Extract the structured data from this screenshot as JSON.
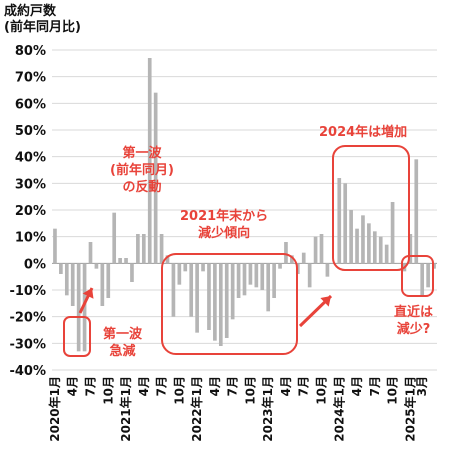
{
  "ytitle_line1": "成約戸数",
  "ytitle_line2": "(前年同月比)",
  "chart_data": {
    "type": "bar",
    "ylim": [
      -40,
      80
    ],
    "yticks": [
      -40,
      -30,
      -20,
      -10,
      0,
      10,
      20,
      30,
      40,
      50,
      60,
      70,
      80
    ],
    "ytick_suffix": "%",
    "grid": true,
    "bar_color": "#b5b5b5",
    "x_labels": [
      {
        "i": 0,
        "text": "2020年1月"
      },
      {
        "i": 3,
        "text": "4月"
      },
      {
        "i": 6,
        "text": "7月"
      },
      {
        "i": 9,
        "text": "10月"
      },
      {
        "i": 12,
        "text": "2021年1月"
      },
      {
        "i": 15,
        "text": "4月"
      },
      {
        "i": 18,
        "text": "7月"
      },
      {
        "i": 21,
        "text": "10月"
      },
      {
        "i": 24,
        "text": "2022年1月"
      },
      {
        "i": 27,
        "text": "4月"
      },
      {
        "i": 30,
        "text": "7月"
      },
      {
        "i": 33,
        "text": "10月"
      },
      {
        "i": 36,
        "text": "2023年1月"
      },
      {
        "i": 39,
        "text": "4月"
      },
      {
        "i": 42,
        "text": "7月"
      },
      {
        "i": 45,
        "text": "10月"
      },
      {
        "i": 48,
        "text": "2024年1月"
      },
      {
        "i": 51,
        "text": "4月"
      },
      {
        "i": 54,
        "text": "7月"
      },
      {
        "i": 57,
        "text": "10月"
      },
      {
        "i": 60,
        "text": "2025年1月"
      },
      {
        "i": 62,
        "text": "3月"
      }
    ],
    "values": [
      13,
      -4,
      -12,
      -16,
      -33,
      -33,
      8,
      -2,
      -16,
      -13,
      19,
      2,
      2,
      -7,
      11,
      11,
      77,
      64,
      11,
      3,
      -20,
      -8,
      -3,
      -20,
      -26,
      -3,
      -25,
      -29,
      -31,
      -28,
      -21,
      -13,
      -12,
      -8,
      -9,
      -10,
      -18,
      -13,
      -2,
      8,
      3,
      -4,
      4,
      -9,
      10,
      11,
      -5,
      0,
      32,
      30,
      20,
      13,
      18,
      15,
      12,
      10,
      7,
      23,
      0,
      -3,
      11,
      39,
      -12,
      -9,
      -2
    ]
  },
  "annotations": {
    "rebound": [
      "第一波",
      "(前年同月)",
      "の反動"
    ],
    "first_wave": [
      "第一波",
      "急減"
    ],
    "decline": [
      "2021年末から",
      "減少傾向"
    ],
    "increase": [
      "2024年は増加"
    ],
    "recent": [
      "直近は",
      "減少?"
    ]
  },
  "colors": {
    "annotation": "#e8433a",
    "bars": "#b5b5b5",
    "grid": "#d9d9d9"
  }
}
